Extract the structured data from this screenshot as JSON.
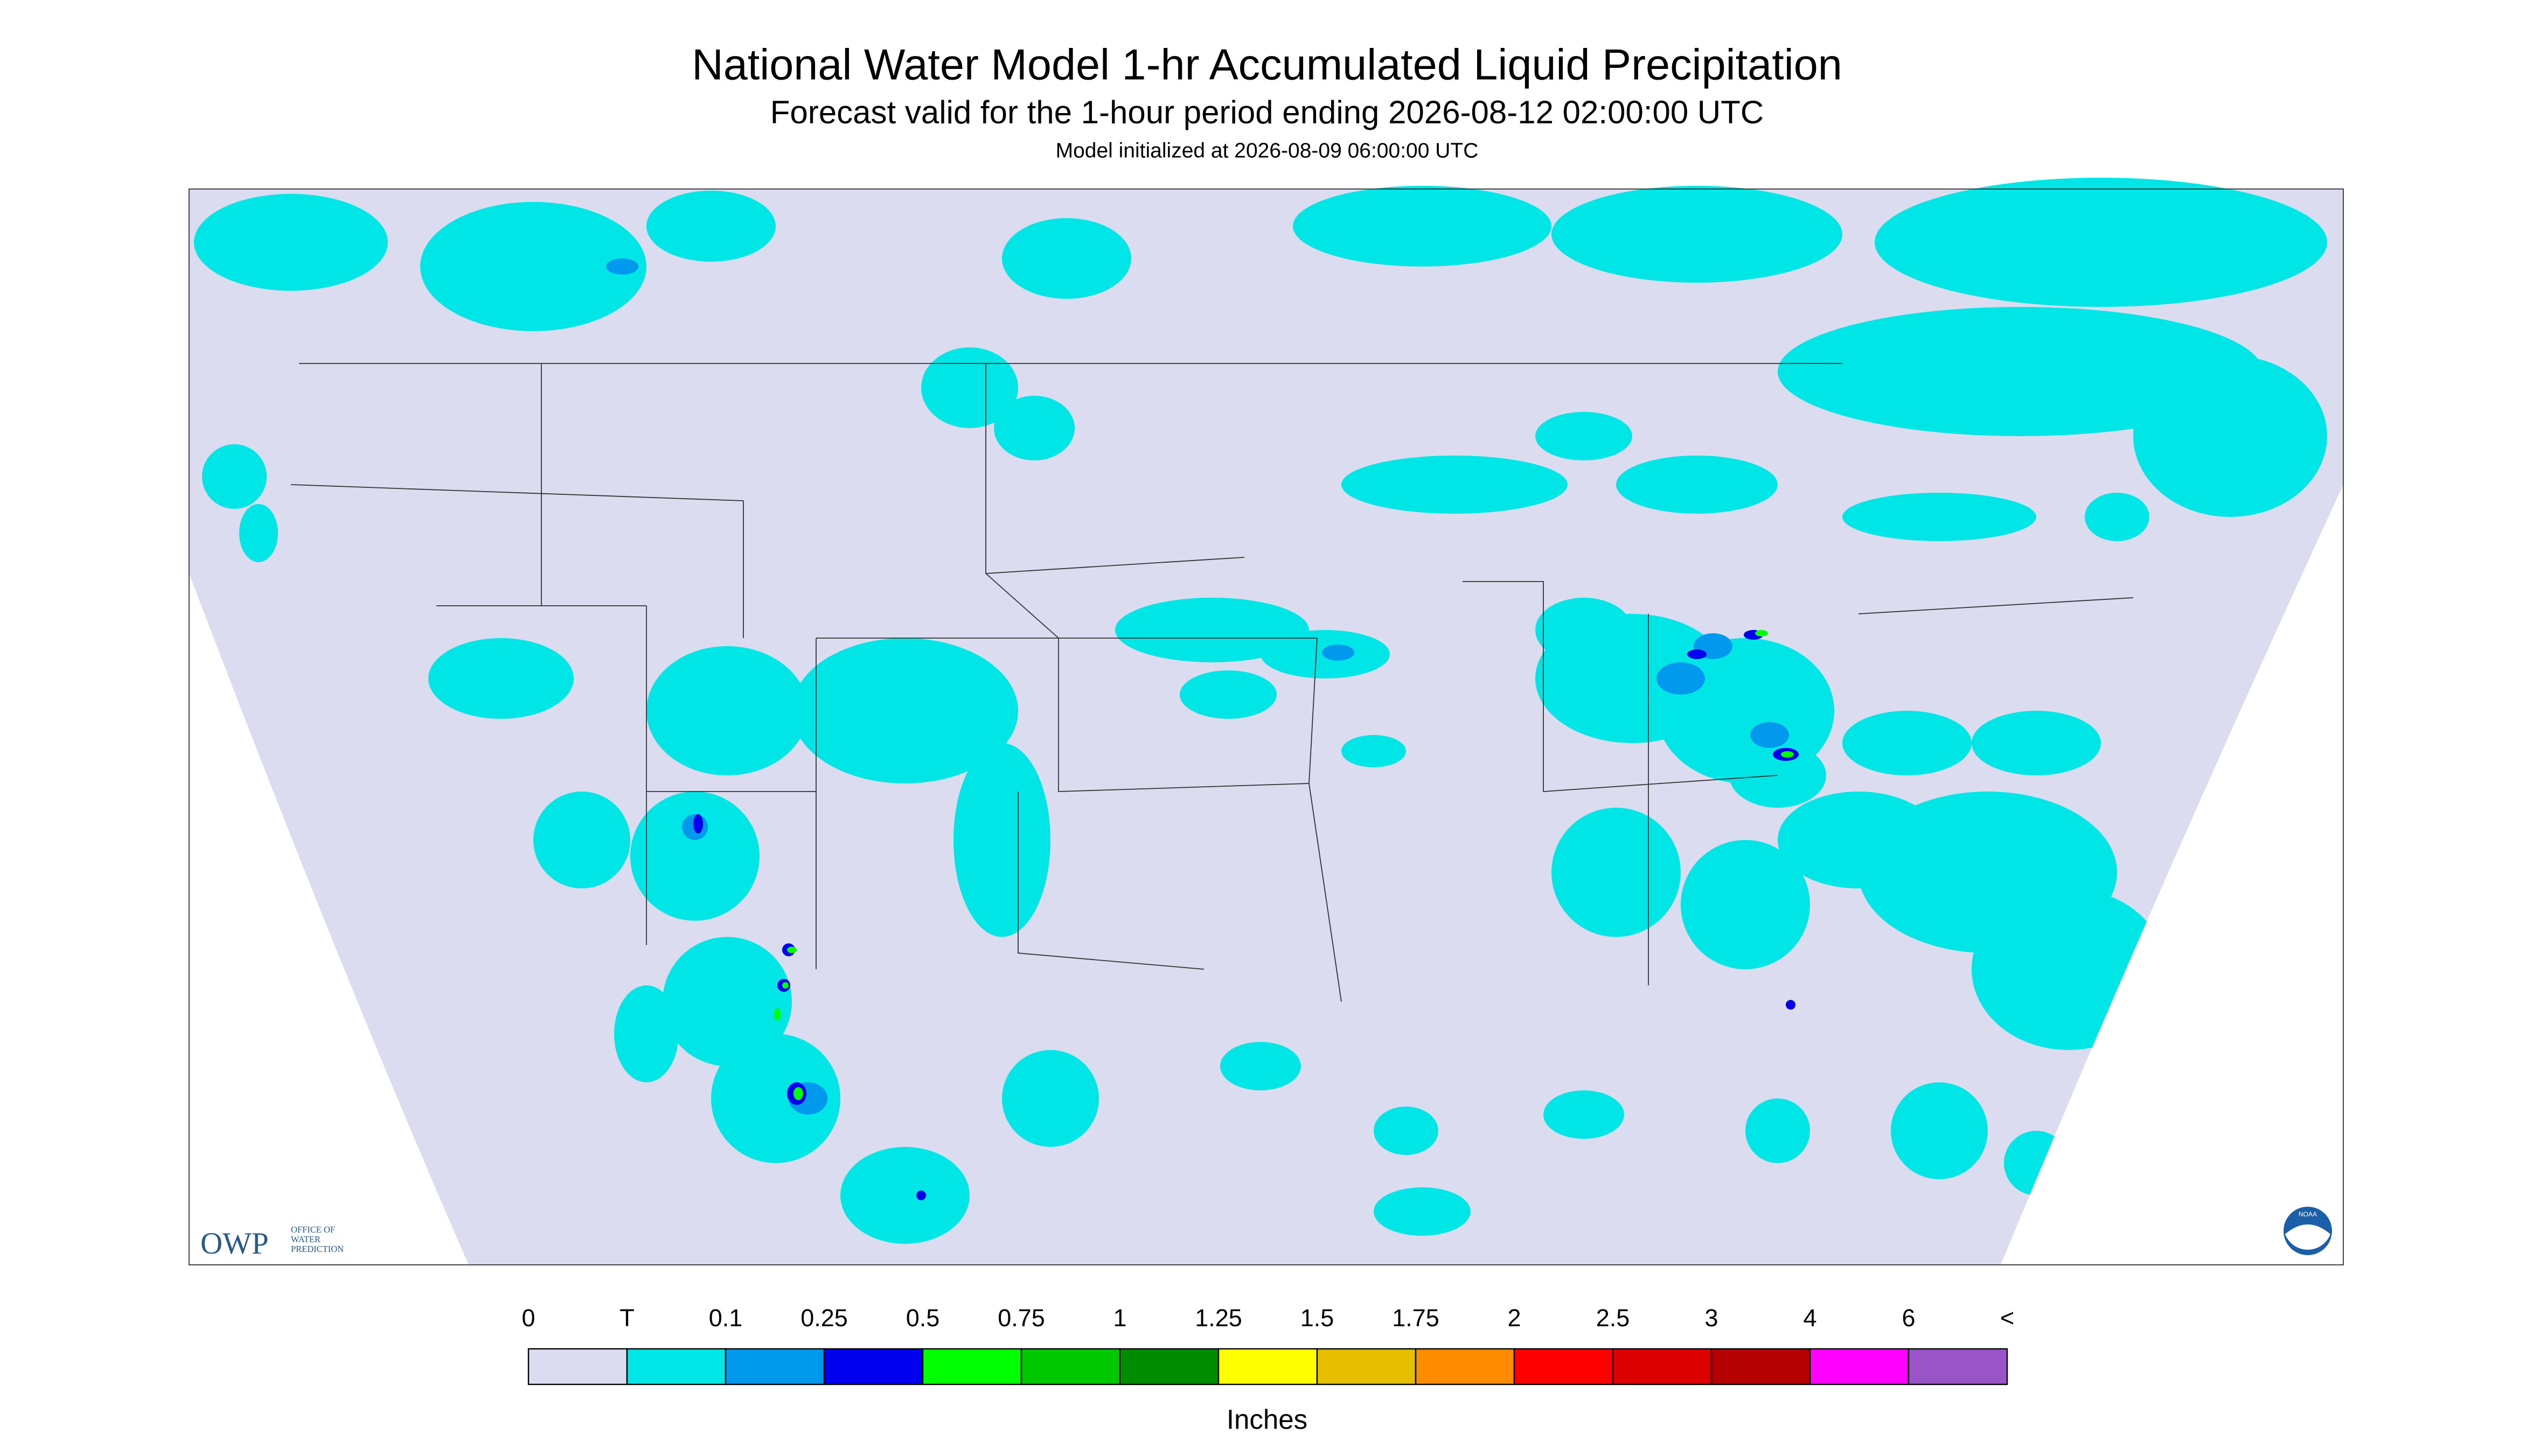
{
  "header": {
    "title": "National Water Model 1-hr Accumulated Liquid Precipitation",
    "subtitle": "Forecast valid for the 1-hour period ending 2026-08-12 02:00:00 UTC",
    "init": "Model initialized at 2026-08-09 06:00:00 UTC"
  },
  "logos": {
    "owp": "OWP",
    "owp_text": [
      "OFFICE OF",
      "WATER",
      "PREDICTION"
    ],
    "noaa": "NOAA"
  },
  "legend": {
    "labels": [
      "0",
      "T",
      "0.1",
      "0.25",
      "0.5",
      "0.75",
      "1",
      "1.25",
      "1.5",
      "1.75",
      "2",
      "2.5",
      "3",
      "4",
      "6",
      "<"
    ],
    "colors": [
      "#dcdcf0",
      "#00e6e6",
      "#0099ee",
      "#0000ee",
      "#00ff00",
      "#00c800",
      "#008c00",
      "#ffff00",
      "#e6be00",
      "#ff8c00",
      "#ff0000",
      "#dc0000",
      "#b40000",
      "#ff00ff",
      "#9955c8"
    ],
    "unit": "Inches"
  }
}
